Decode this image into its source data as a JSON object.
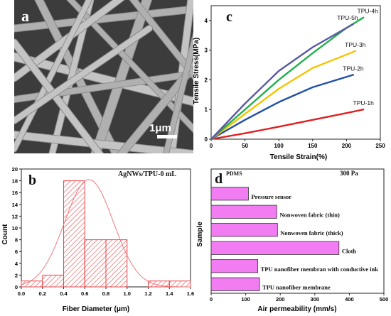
{
  "panels": {
    "a": {
      "letter": "a",
      "scale_bar_label": "1μm",
      "image_description_colors": {
        "background": "#3a3a3a",
        "fiber": "#b8b8b8"
      }
    },
    "b": {
      "letter": "b",
      "annotation": "AgNWs/TPU-0 mL",
      "colors": {
        "bar_hatch": "#e8464a",
        "fit_line": "#f07a7c"
      }
    },
    "c": {
      "letter": "c",
      "colors": {
        "TPU-1h": "#e02020",
        "TPU-2h": "#1f4fa8",
        "TPU-3h": "#f5c400",
        "TPU-4h": "#22b04b",
        "TPU-5h": "#5a5aa0"
      }
    },
    "d": {
      "letter": "d",
      "legend_label": "PDMS",
      "pressure_label": "300 Pa",
      "colors": {
        "bar": "#f27cf2",
        "bar_border": "#333333"
      }
    }
  },
  "chart_data": [
    {
      "panel": "b",
      "type": "bar",
      "xlabel": "Fiber Diameter (μm)",
      "ylabel": "Count",
      "xlim": [
        0.0,
        1.6
      ],
      "ylim": [
        0,
        20
      ],
      "xticks": [
        0.0,
        0.2,
        0.4,
        0.6,
        0.8,
        1.0,
        1.2,
        1.4,
        1.6
      ],
      "yticks": [
        0,
        2,
        4,
        6,
        8,
        10,
        12,
        14,
        16,
        18,
        20
      ],
      "bins": [
        {
          "x0": 0.0,
          "x1": 0.2,
          "count": 1
        },
        {
          "x0": 0.2,
          "x1": 0.4,
          "count": 2
        },
        {
          "x0": 0.4,
          "x1": 0.6,
          "count": 18
        },
        {
          "x0": 0.6,
          "x1": 0.8,
          "count": 8
        },
        {
          "x0": 0.8,
          "x1": 1.0,
          "count": 8
        },
        {
          "x0": 1.0,
          "x1": 1.2,
          "count": 0
        },
        {
          "x0": 1.2,
          "x1": 1.4,
          "count": 1
        },
        {
          "x0": 1.4,
          "x1": 1.6,
          "count": 1
        }
      ],
      "fit_curve": {
        "type": "gaussian",
        "mean": 0.64,
        "sigma": 0.23,
        "peak": 18.2
      }
    },
    {
      "panel": "c",
      "type": "line",
      "xlabel": "Tensile Strain(%)",
      "ylabel": "Tensile Stress(MPa)",
      "xlim": [
        0,
        250
      ],
      "ylim": [
        0,
        4.5
      ],
      "xticks": [
        0,
        50,
        100,
        150,
        200,
        250
      ],
      "yticks": [
        0,
        1,
        2,
        3,
        4
      ],
      "series": [
        {
          "name": "TPU-1h",
          "x": [
            0,
            50,
            100,
            150,
            200,
            225
          ],
          "y": [
            0,
            0.2,
            0.42,
            0.65,
            0.88,
            1.0
          ]
        },
        {
          "name": "TPU-2h",
          "x": [
            0,
            50,
            100,
            150,
            200,
            210
          ],
          "y": [
            0,
            0.65,
            1.25,
            1.75,
            2.1,
            2.17
          ]
        },
        {
          "name": "TPU-3h",
          "x": [
            0,
            50,
            100,
            150,
            200,
            213
          ],
          "y": [
            0,
            0.85,
            1.7,
            2.4,
            2.85,
            2.97
          ]
        },
        {
          "name": "TPU-4h",
          "x": [
            0,
            50,
            100,
            150,
            200,
            225
          ],
          "y": [
            0,
            1.0,
            2.0,
            2.9,
            3.75,
            4.1
          ]
        },
        {
          "name": "TPU-5h",
          "x": [
            0,
            50,
            100,
            150,
            200,
            210
          ],
          "y": [
            0,
            1.2,
            2.3,
            3.1,
            3.75,
            3.88
          ]
        }
      ]
    },
    {
      "panel": "d",
      "type": "bar",
      "orientation": "horizontal",
      "xlabel": "Air permeability (mm/s)",
      "ylabel": "Sample",
      "xlim": [
        0,
        500
      ],
      "xticks": [
        0,
        100,
        200,
        300,
        400,
        500
      ],
      "categories": [
        "Pressure sensor",
        "Nonwoven fabric (thin)",
        "Nonwoven fabric (thick)",
        "Cloth",
        "TPU nanofiber membran  with conductive ink",
        "TPU nanofiber membrane"
      ],
      "values": [
        108,
        190,
        192,
        370,
        135,
        140
      ]
    }
  ]
}
